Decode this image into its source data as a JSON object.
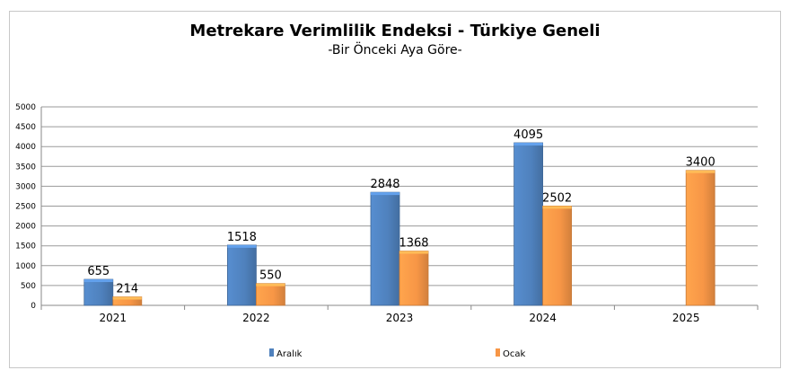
{
  "chart_data": {
    "type": "bar",
    "title": "Metrekare Verimlilik Endeksi - Türkiye Geneli",
    "subtitle": "-Bir Önceki Aya Göre-",
    "categories": [
      "2021",
      "2022",
      "2023",
      "2024",
      "2025"
    ],
    "series": [
      {
        "name": "Aralık",
        "color": "#4f81bd",
        "values": [
          655,
          1518,
          2848,
          4095,
          null
        ]
      },
      {
        "name": "Ocak",
        "color": "#f79646",
        "values": [
          214,
          550,
          1368,
          2502,
          3400
        ]
      }
    ],
    "yticks": [
      "0",
      "500",
      "1000",
      "1500",
      "2000",
      "2500",
      "3000",
      "3500",
      "4000",
      "4500",
      "5000"
    ],
    "ylim": [
      0,
      5000
    ],
    "grid": true,
    "legend": "bottom"
  }
}
